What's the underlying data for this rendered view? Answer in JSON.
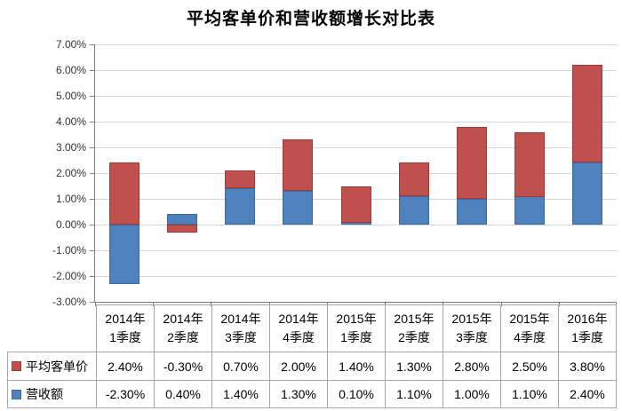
{
  "title": "平均客单价和营收额增长对比表",
  "colors": {
    "series_red": "#C0504D",
    "series_red_border": "#9E3B39",
    "series_blue": "#4F81BD",
    "series_blue_border": "#3A6AA0",
    "gridline": "#D6D6D6",
    "axis": "#7F7F7F",
    "table_border": "#A6A6A6"
  },
  "chart_data": {
    "type": "bar",
    "stacked": true,
    "title": "平均客单价和营收额增长对比表",
    "categories": [
      {
        "line1": "2014年",
        "line2": "1季度"
      },
      {
        "line1": "2014年",
        "line2": "2季度"
      },
      {
        "line1": "2014年",
        "line2": "3季度"
      },
      {
        "line1": "2014年",
        "line2": "4季度"
      },
      {
        "line1": "2015年",
        "line2": "1季度"
      },
      {
        "line1": "2015年",
        "line2": "2季度"
      },
      {
        "line1": "2015年",
        "line2": "3季度"
      },
      {
        "line1": "2015年",
        "line2": "4季度"
      },
      {
        "line1": "2016年",
        "line2": "1季度"
      }
    ],
    "series": [
      {
        "name": "平均客单价",
        "color": "#C0504D",
        "border_color": "#9E3B39",
        "values": [
          2.4,
          -0.3,
          0.7,
          2.0,
          1.4,
          1.3,
          2.8,
          2.5,
          3.8
        ],
        "labels": [
          "2.40%",
          "-0.30%",
          "0.70%",
          "2.00%",
          "1.40%",
          "1.30%",
          "2.80%",
          "2.50%",
          "3.80%"
        ]
      },
      {
        "name": "营收额",
        "color": "#4F81BD",
        "border_color": "#3A6AA0",
        "values": [
          -2.3,
          0.4,
          1.4,
          1.3,
          0.1,
          1.1,
          1.0,
          1.1,
          2.4
        ],
        "labels": [
          "-2.30%",
          "0.40%",
          "1.40%",
          "1.30%",
          "0.10%",
          "1.10%",
          "1.00%",
          "1.10%",
          "2.40%"
        ]
      }
    ],
    "stack_draw_order": [
      1,
      0
    ],
    "ylim": [
      -3,
      7
    ],
    "ytick_step": 1,
    "ytick_labels": [
      "7.00%",
      "6.00%",
      "5.00%",
      "4.00%",
      "3.00%",
      "2.00%",
      "1.00%",
      "0.00%",
      "-1.00%",
      "-2.00%",
      "-3.00%"
    ],
    "grid": true,
    "legend_position": "table-rows"
  }
}
